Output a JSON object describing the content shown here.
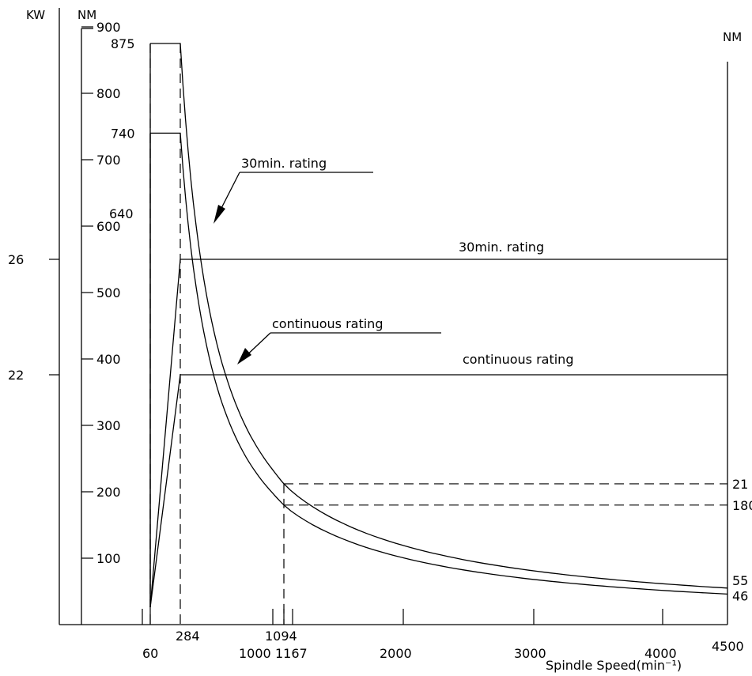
{
  "chart_data": {
    "type": "line",
    "title": "",
    "x_axis": {
      "label": "Spindle Speed(min⁻¹)",
      "ticks": [
        60,
        284,
        1000,
        1094,
        1167,
        2000,
        3000,
        4000,
        4500
      ],
      "range": [
        0,
        4500
      ]
    },
    "left_torque_axis": {
      "unit": "NM",
      "ticks": [
        100,
        200,
        300,
        400,
        500,
        600,
        700,
        800,
        900
      ],
      "extra_labels": [
        875,
        740,
        640
      ],
      "range": [
        0,
        900
      ]
    },
    "power_axis": {
      "unit": "KW",
      "ticks": [
        22,
        26
      ]
    },
    "right_torque_axis": {
      "unit": "NM",
      "labels": [
        "21",
        "180",
        "55",
        "46"
      ]
    },
    "series": [
      {
        "name": "30min. rating",
        "quantity": "torque",
        "points": [
          [
            60,
            875
          ],
          [
            284,
            875
          ],
          [
            1094,
            212
          ],
          [
            4500,
            55
          ]
        ]
      },
      {
        "name": "continuous rating",
        "quantity": "torque",
        "points": [
          [
            60,
            740
          ],
          [
            284,
            740
          ],
          [
            1094,
            180
          ],
          [
            4500,
            46
          ]
        ]
      },
      {
        "name": "30min. rating",
        "quantity": "power",
        "points": [
          [
            60,
            0
          ],
          [
            284,
            26
          ],
          [
            4500,
            26
          ]
        ]
      },
      {
        "name": "continuous rating",
        "quantity": "power",
        "points": [
          [
            60,
            0
          ],
          [
            284,
            22
          ],
          [
            4500,
            22
          ]
        ]
      }
    ],
    "annotations": {
      "torque_30min": "30min. rating",
      "torque_continuous": "continuous rating",
      "power_30min": "30min. rating",
      "power_continuous": "continuous rating"
    },
    "grid": false,
    "legend": "none"
  }
}
